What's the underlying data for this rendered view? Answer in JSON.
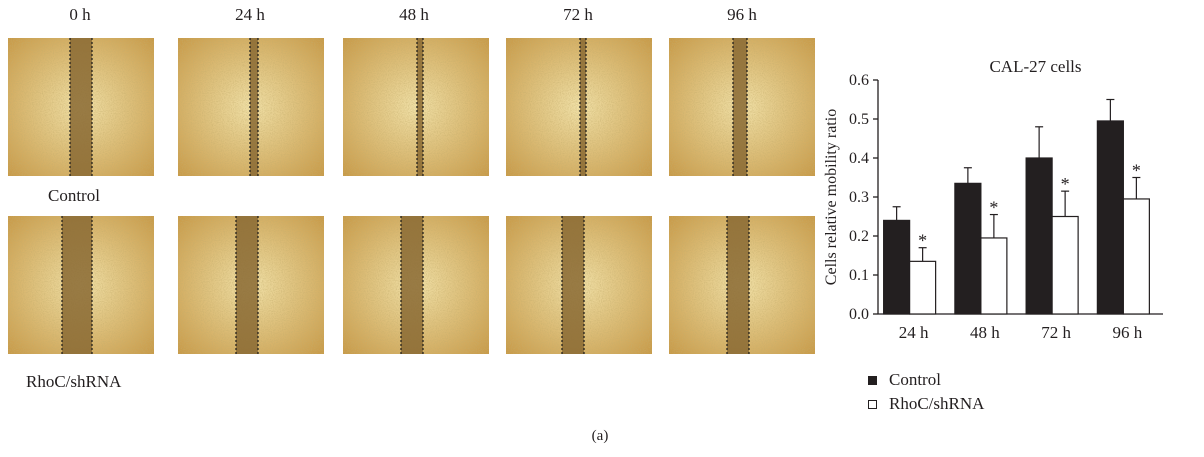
{
  "figure": {
    "timepoints": [
      "0 h",
      "24 h",
      "48 h",
      "72 h",
      "96 h"
    ],
    "rows": [
      "Control",
      "RhoC/shRNA"
    ],
    "caption": "(a)"
  },
  "colors": {
    "cell_base": "#dcc07a",
    "gap": "#8a6a34",
    "dashed_line": "#1a1a1a",
    "control_bar": "#231f20",
    "shrna_bar": "#ffffff"
  },
  "chart_data": {
    "type": "bar",
    "title": "CAL-27 cells",
    "ylabel": "Cells relative mobility ratio",
    "xlabel": "",
    "categories": [
      "24 h",
      "48 h",
      "72 h",
      "96 h"
    ],
    "ylim": [
      0,
      0.6
    ],
    "yticks": [
      "0.0",
      "0.1",
      "0.2",
      "0.3",
      "0.4",
      "0.5",
      "0.6"
    ],
    "series": [
      {
        "name": "Control",
        "values": [
          0.24,
          0.335,
          0.4,
          0.495
        ],
        "errors": [
          0.035,
          0.04,
          0.08,
          0.055
        ],
        "color": "#231f20"
      },
      {
        "name": "RhoC/shRNA",
        "values": [
          0.135,
          0.195,
          0.25,
          0.295
        ],
        "errors": [
          0.035,
          0.06,
          0.065,
          0.055
        ],
        "color": "#ffffff"
      }
    ],
    "significance_marker": "*",
    "legend_position": "bottom"
  }
}
